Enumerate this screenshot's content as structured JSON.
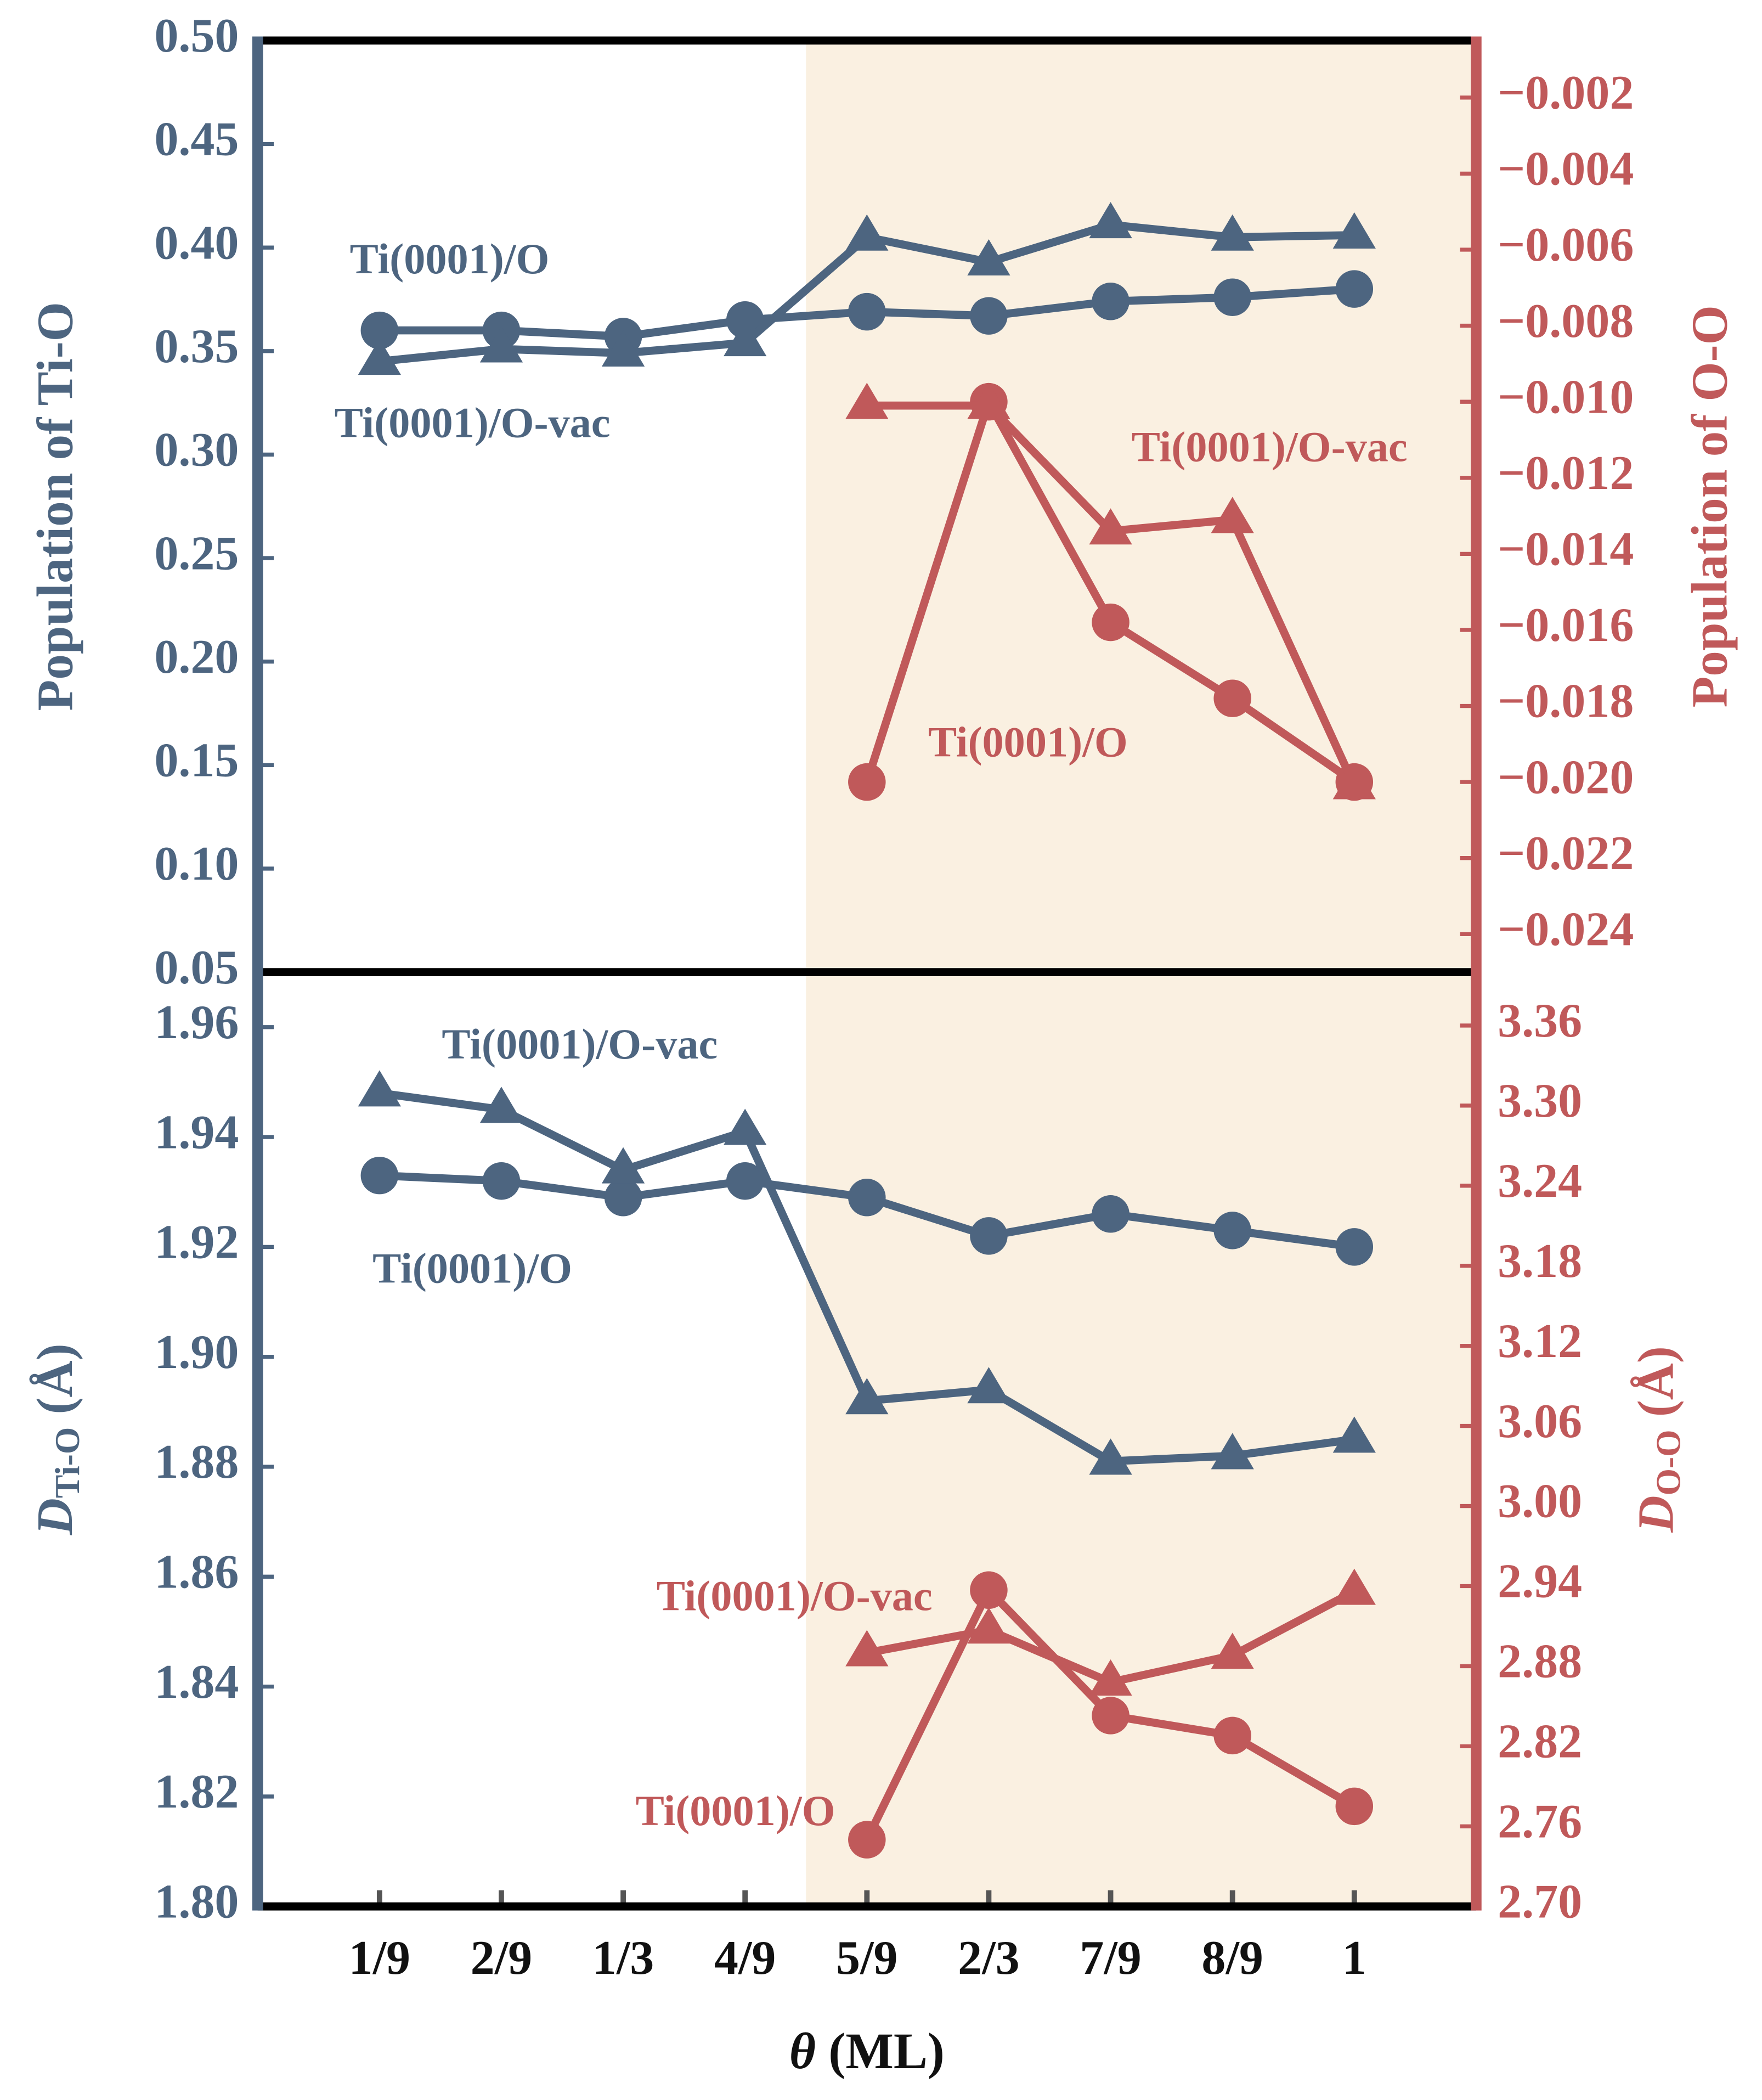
{
  "chart_data": [
    {
      "type": "line",
      "ylabel": "Population of Ti-O",
      "y2label": "Population of O-O",
      "ylim": [
        0.05,
        0.5
      ],
      "yticks": [
        {
          "value": 0.05,
          "label": "0.05"
        },
        {
          "value": 0.1,
          "label": "0.10"
        },
        0.15,
        {
          "value": 0.2,
          "label": "0.20"
        },
        0.25,
        {
          "value": 0.3,
          "label": "0.30"
        },
        0.35,
        {
          "value": 0.4,
          "label": "0.40"
        },
        0.45,
        {
          "value": 0.5,
          "label": "0.50"
        }
      ],
      "y2lim": [
        -0.025,
        -0.0005
      ],
      "y2ticks": [
        {
          "value": -0.024,
          "label": "−0.024"
        },
        {
          "value": -0.022,
          "label": "−0.022"
        },
        {
          "value": -0.02,
          "label": "−0.020"
        },
        {
          "value": -0.018,
          "label": "−0.018"
        },
        {
          "value": -0.016,
          "label": "−0.016"
        },
        {
          "value": -0.014,
          "label": "−0.014"
        },
        {
          "value": -0.012,
          "label": "−0.012"
        },
        {
          "value": -0.01,
          "label": "−0.010"
        },
        {
          "value": -0.008,
          "label": "−0.008"
        },
        {
          "value": -0.006,
          "label": "−0.006"
        },
        {
          "value": -0.004,
          "label": "−0.004"
        },
        {
          "value": -0.002,
          "label": "−0.002"
        }
      ],
      "series": [
        {
          "name": "Ti(0001)/O",
          "color": "#4d6580",
          "marker": "circle",
          "axis": "y",
          "values": [
            0.36,
            0.36,
            0.357,
            0.365,
            0.369,
            0.367,
            0.374,
            0.376,
            0.38
          ]
        },
        {
          "name": "Ti(0001)/O-vac",
          "color": "#4d6580",
          "marker": "triangle",
          "axis": "y",
          "values": [
            0.345,
            0.351,
            0.349,
            0.354,
            0.405,
            0.393,
            0.411,
            0.405,
            0.406
          ]
        },
        {
          "name": "Ti(0001)/O",
          "color": "#c0595a",
          "marker": "circle",
          "axis": "y2",
          "values": [
            null,
            null,
            null,
            null,
            -0.02,
            -0.01,
            -0.0158,
            -0.0178,
            -0.02
          ]
        },
        {
          "name": "Ti(0001)/O-vac",
          "color": "#c0595a",
          "marker": "triangle",
          "axis": "y2",
          "values": [
            null,
            null,
            null,
            null,
            -0.0101,
            -0.0101,
            -0.0134,
            -0.0131,
            -0.0201
          ]
        }
      ]
    },
    {
      "type": "line",
      "ylabel": [
        "D",
        "Ti-O",
        " (Å)"
      ],
      "y2label": [
        "D",
        "O-O",
        " (Å)"
      ],
      "xlabel": [
        "θ",
        " (ML)"
      ],
      "categories": [
        "1/9",
        "2/9",
        "1/3",
        "4/9",
        "5/9",
        "2/3",
        "7/9",
        "8/9",
        "1"
      ],
      "ylim": [
        1.8,
        1.97
      ],
      "yticks": [
        {
          "value": 1.8,
          "label": "1.80"
        },
        1.82,
        1.84,
        1.86,
        1.88,
        {
          "value": 1.9,
          "label": "1.90"
        },
        1.92,
        1.94,
        1.96
      ],
      "y2lim": [
        2.7,
        3.4
      ],
      "y2ticks": [
        {
          "value": 2.7,
          "label": "2.70"
        },
        2.76,
        2.82,
        2.88,
        2.94,
        {
          "value": 3.0,
          "label": "3.00"
        },
        3.06,
        3.12,
        3.18,
        3.24,
        {
          "value": 3.3,
          "label": "3.30"
        },
        3.36
      ],
      "series": [
        {
          "name": "Ti(0001)/O",
          "color": "#4d6580",
          "marker": "circle",
          "axis": "y",
          "values": [
            1.933,
            1.932,
            1.929,
            1.932,
            1.929,
            1.922,
            1.926,
            1.923,
            1.92
          ]
        },
        {
          "name": "Ti(0001)/O-vac",
          "color": "#4d6580",
          "marker": "triangle",
          "axis": "y",
          "values": [
            1.948,
            1.945,
            1.934,
            1.941,
            1.892,
            1.894,
            1.881,
            1.882,
            1.885
          ]
        },
        {
          "name": "Ti(0001)/O",
          "color": "#c0595a",
          "marker": "circle",
          "axis": "y2",
          "values": [
            null,
            null,
            null,
            null,
            2.75,
            2.937,
            2.843,
            2.828,
            2.775
          ]
        },
        {
          "name": "Ti(0001)/O-vac",
          "color": "#c0595a",
          "marker": "triangle",
          "axis": "y2",
          "values": [
            null,
            null,
            null,
            null,
            2.89,
            2.907,
            2.868,
            2.888,
            2.936
          ]
        }
      ]
    }
  ]
}
